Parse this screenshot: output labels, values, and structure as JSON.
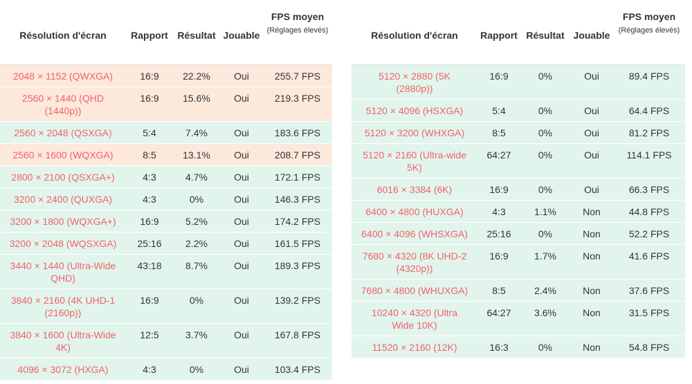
{
  "tables": [
    {
      "headers": [
        "Résolution d'écran",
        "Rapport",
        "Résultat",
        "Jouable",
        "FPS moyen"
      ],
      "header_note": "(Réglages élevés)",
      "rows": [
        {
          "color": "#fde8dc",
          "cells": [
            "2048 × 1152 (QWXGA)",
            "16:9",
            "22.2%",
            "Oui",
            "255.7 FPS"
          ]
        },
        {
          "color": "#fde8dc",
          "cells": [
            "2560 × 1440 (QHD (1440p))",
            "16:9",
            "15.6%",
            "Oui",
            "219.3 FPS"
          ]
        },
        {
          "color": "#e2f5ec",
          "cells": [
            "2560 × 2048 (QSXGA)",
            "5:4",
            "7.4%",
            "Oui",
            "183.6 FPS"
          ]
        },
        {
          "color": "#fde8dc",
          "cells": [
            "2560 × 1600 (WQXGA)",
            "8:5",
            "13.1%",
            "Oui",
            "208.7 FPS"
          ]
        },
        {
          "color": "#e2f5ec",
          "cells": [
            "2800 × 2100 (QSXGA+)",
            "4:3",
            "4.7%",
            "Oui",
            "172.1 FPS"
          ]
        },
        {
          "color": "#e2f5ec",
          "cells": [
            "3200 × 2400 (QUXGA)",
            "4:3",
            "0%",
            "Oui",
            "146.3 FPS"
          ]
        },
        {
          "color": "#e2f5ec",
          "cells": [
            "3200 × 1800 (WQXGA+)",
            "16:9",
            "5.2%",
            "Oui",
            "174.2 FPS"
          ]
        },
        {
          "color": "#e2f5ec",
          "cells": [
            "3200 × 2048 (WQSXGA)",
            "25:16",
            "2.2%",
            "Oui",
            "161.5 FPS"
          ]
        },
        {
          "color": "#e2f5ec",
          "cells": [
            "3440 × 1440 (Ultra-Wide QHD)",
            "43:18",
            "8.7%",
            "Oui",
            "189.3 FPS"
          ]
        },
        {
          "color": "#e2f5ec",
          "cells": [
            "3840 × 2160 (4K UHD-1 (2160p))",
            "16:9",
            "0%",
            "Oui",
            "139.2 FPS"
          ]
        },
        {
          "color": "#e2f5ec",
          "cells": [
            "3840 × 1600 (Ultra-Wide 4K)",
            "12:5",
            "3.7%",
            "Oui",
            "167.8 FPS"
          ]
        },
        {
          "color": "#e2f5ec",
          "cells": [
            "4096 × 3072 (HXGA)",
            "4:3",
            "0%",
            "Oui",
            "103.4 FPS"
          ]
        }
      ]
    },
    {
      "headers": [
        "Résolution d'écran",
        "Rapport",
        "Résultat",
        "Jouable",
        "FPS moyen"
      ],
      "header_note": "(Réglages élevés)",
      "rows": [
        {
          "color": "#e2f5ec",
          "cells": [
            "5120 × 2880 (5K (2880p))",
            "16:9",
            "0%",
            "Oui",
            "89.4 FPS"
          ]
        },
        {
          "color": "#e2f5ec",
          "cells": [
            "5120 × 4096 (HSXGA)",
            "5:4",
            "0%",
            "Oui",
            "64.4 FPS"
          ]
        },
        {
          "color": "#e2f5ec",
          "cells": [
            "5120 × 3200 (WHXGA)",
            "8:5",
            "0%",
            "Oui",
            "81.2 FPS"
          ]
        },
        {
          "color": "#e2f5ec",
          "cells": [
            "5120 × 2160 (Ultra-wide 5K)",
            "64:27",
            "0%",
            "Oui",
            "114.1 FPS"
          ]
        },
        {
          "color": "#e2f5ec",
          "cells": [
            "6016 × 3384 (6K)",
            "16:9",
            "0%",
            "Oui",
            "66.3 FPS"
          ]
        },
        {
          "color": "#e2f5ec",
          "cells": [
            "6400 × 4800 (HUXGA)",
            "4:3",
            "1.1%",
            "Non",
            "44.8 FPS"
          ]
        },
        {
          "color": "#e2f5ec",
          "cells": [
            "6400 × 4096 (WHSXGA)",
            "25:16",
            "0%",
            "Non",
            "52.2 FPS"
          ]
        },
        {
          "color": "#e2f5ec",
          "cells": [
            "7680 × 4320 (8K UHD-2 (4320p))",
            "16:9",
            "1.7%",
            "Non",
            "41.6 FPS"
          ]
        },
        {
          "color": "#e2f5ec",
          "cells": [
            "7680 × 4800 (WHUXGA)",
            "8:5",
            "2.4%",
            "Non",
            "37.6 FPS"
          ]
        },
        {
          "color": "#e2f5ec",
          "cells": [
            "10240 × 4320 (Ultra Wide 10K)",
            "64:27",
            "3.6%",
            "Non",
            "31.5 FPS"
          ]
        },
        {
          "color": "#e2f5ec",
          "cells": [
            "11520 × 2160 (12K)",
            "16:3",
            "0%",
            "Non",
            "54.8 FPS"
          ]
        }
      ]
    }
  ]
}
